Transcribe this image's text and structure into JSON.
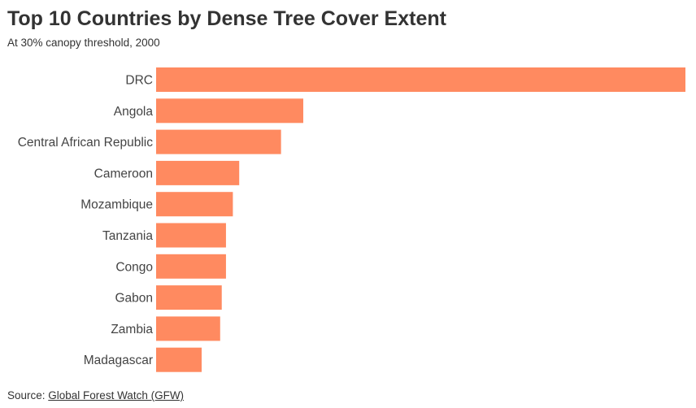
{
  "header": {
    "title": "Top 10 Countries by Dense Tree Cover Extent",
    "subtitle": "At 30% canopy threshold, 2000"
  },
  "footer": {
    "source_prefix": "Source: ",
    "source_link": "Global Forest Watch (GFW)"
  },
  "colors": {
    "bar": "#ff8a60"
  },
  "chart_data": {
    "type": "bar",
    "orientation": "horizontal",
    "title": "Top 10 Countries by Dense Tree Cover Extent",
    "subtitle": "At 30% canopy threshold, 2000",
    "categories": [
      "DRC",
      "Angola",
      "Central African Republic",
      "Cameroon",
      "Mozambique",
      "Tanzania",
      "Congo",
      "Gabon",
      "Zambia",
      "Madagascar"
    ],
    "values": [
      100,
      27.8,
      23.6,
      15.7,
      14.5,
      13.2,
      13.2,
      12.4,
      12.1,
      8.6
    ],
    "xlabel": "",
    "ylabel": "",
    "xlim": [
      0,
      100
    ],
    "grid": false,
    "legend": "none"
  }
}
